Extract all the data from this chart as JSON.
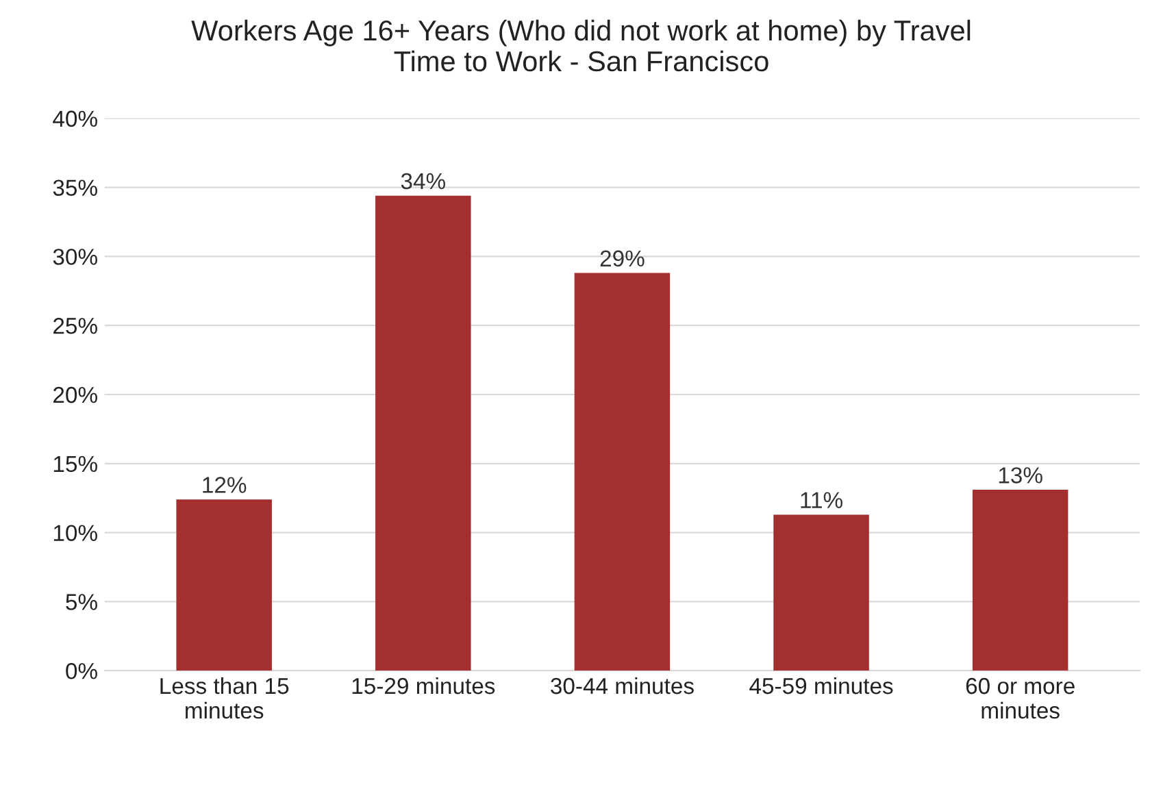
{
  "chart_data": {
    "type": "bar",
    "title": "Workers Age 16+ Years (Who did not work at home) by Travel\nTime to Work - San Francisco",
    "categories": [
      "Less than 15\nminutes",
      "15-29 minutes",
      "30-44 minutes",
      "45-59 minutes",
      "60 or more\nminutes"
    ],
    "values": [
      12.4,
      34.4,
      28.8,
      11.3,
      13.1
    ],
    "value_labels": [
      "12%",
      "34%",
      "29%",
      "11%",
      "13%"
    ],
    "color": "#a3302f",
    "ylim": [
      0,
      40
    ],
    "yticks": [
      {
        "value": 0,
        "label": "0%"
      },
      {
        "value": 5,
        "label": "5%"
      },
      {
        "value": 10,
        "label": "10%"
      },
      {
        "value": 15,
        "label": "15%"
      },
      {
        "value": 20,
        "label": "20%"
      },
      {
        "value": 25,
        "label": "25%"
      },
      {
        "value": 30,
        "label": "30%"
      },
      {
        "value": 35,
        "label": "35%"
      },
      {
        "value": 40,
        "label": "40%"
      }
    ],
    "grid": "y"
  }
}
